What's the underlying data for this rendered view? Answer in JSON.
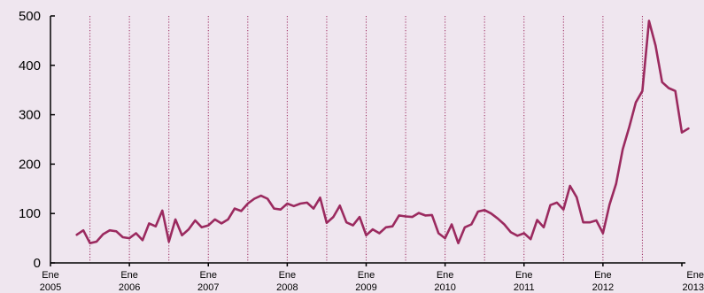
{
  "chart_data": {
    "type": "line",
    "title": "",
    "xlabel": "",
    "ylabel": "",
    "ylim": [
      0,
      500
    ],
    "yticks": [
      0,
      100,
      200,
      300,
      400,
      500
    ],
    "x_tick_labels": [
      [
        "Ene",
        "2005"
      ],
      [
        "Ene",
        "2006"
      ],
      [
        "Ene",
        "2007"
      ],
      [
        "Ene",
        "2008"
      ],
      [
        "Ene",
        "2009"
      ],
      [
        "Ene",
        "2010"
      ],
      [
        "Ene",
        "2011"
      ],
      [
        "Ene",
        "2012"
      ],
      [
        "Ene",
        "2013"
      ]
    ],
    "x_start": "2005-01",
    "x_end": "2013-01",
    "vertical_gridlines": "dotted, every 6 months",
    "colors": {
      "line": "#9b2a5f",
      "grid": "#9b2a5f",
      "background": "#efe6ef",
      "axis": "#000000"
    },
    "series": [
      {
        "x": [
          "2005-05",
          "2005-06",
          "2005-07",
          "2005-08",
          "2005-09",
          "2005-10",
          "2005-11",
          "2005-12",
          "2006-01",
          "2006-02",
          "2006-03",
          "2006-04",
          "2006-05",
          "2006-06",
          "2006-07",
          "2006-08",
          "2006-09",
          "2006-10",
          "2006-11",
          "2006-12",
          "2007-01",
          "2007-02",
          "2007-03",
          "2007-04",
          "2007-05",
          "2007-06",
          "2007-07",
          "2007-08",
          "2007-09",
          "2007-10",
          "2007-11",
          "2007-12",
          "2008-01",
          "2008-02",
          "2008-03",
          "2008-04",
          "2008-05",
          "2008-06",
          "2008-07",
          "2008-08",
          "2008-09",
          "2008-10",
          "2008-11",
          "2008-12",
          "2009-01",
          "2009-02",
          "2009-03",
          "2009-04",
          "2009-05",
          "2009-06",
          "2009-07",
          "2009-08",
          "2009-09",
          "2009-10",
          "2009-11",
          "2009-12",
          "2010-01",
          "2010-02",
          "2010-03",
          "2010-04",
          "2010-05",
          "2010-06",
          "2010-07",
          "2010-08",
          "2010-09",
          "2010-10",
          "2010-11",
          "2010-12",
          "2011-01",
          "2011-02",
          "2011-03",
          "2011-04",
          "2011-05",
          "2011-06",
          "2011-07",
          "2011-08",
          "2011-09",
          "2011-10",
          "2011-11",
          "2011-12",
          "2012-01",
          "2012-02",
          "2012-03",
          "2012-04",
          "2012-05",
          "2012-06",
          "2012-07",
          "2012-08",
          "2012-09",
          "2012-10",
          "2012-11",
          "2012-12",
          "2013-01",
          "2013-02"
        ],
        "values": [
          57,
          66,
          40,
          43,
          58,
          66,
          64,
          52,
          50,
          60,
          46,
          80,
          74,
          106,
          43,
          88,
          56,
          68,
          86,
          72,
          76,
          88,
          80,
          88,
          110,
          105,
          120,
          130,
          136,
          130,
          110,
          108,
          120,
          115,
          120,
          122,
          110,
          132,
          81,
          93,
          116,
          82,
          76,
          93,
          56,
          68,
          60,
          72,
          74,
          96,
          94,
          93,
          101,
          96,
          97,
          60,
          50,
          78,
          40,
          72,
          78,
          104,
          107,
          100,
          90,
          78,
          62,
          55,
          60,
          48,
          87,
          72,
          117,
          122,
          108,
          156,
          133,
          82,
          82,
          86,
          60,
          118,
          160,
          230,
          275,
          325,
          348,
          490,
          440,
          366,
          354,
          348,
          264,
          272
        ]
      }
    ]
  }
}
